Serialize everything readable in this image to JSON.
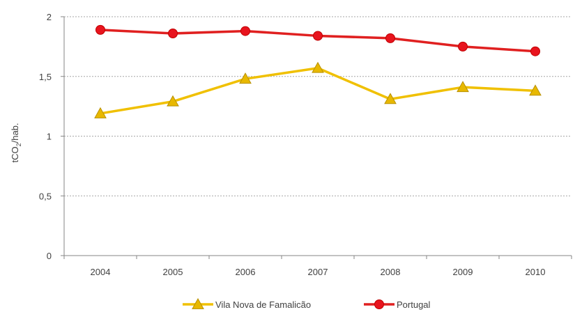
{
  "chart_data": {
    "type": "line",
    "x": [
      "2004",
      "2005",
      "2006",
      "2007",
      "2008",
      "2009",
      "2010"
    ],
    "ylabel": "tCO",
    "ylabel_sub": "2",
    "ylabel_suffix": "/hab.",
    "ylim": [
      0,
      2
    ],
    "yticks": [
      0,
      0.5,
      1,
      1.5,
      2
    ],
    "ytick_labels": [
      "0",
      "0,5",
      "1",
      "1,5",
      "2"
    ],
    "grid": "horizontal-dotted",
    "legend_position": "bottom",
    "series": [
      {
        "name": "Vila Nova de Famalicão",
        "marker": "triangle",
        "color": "#f0c000",
        "marker_fill": "#e8b800",
        "values": [
          1.19,
          1.29,
          1.48,
          1.57,
          1.31,
          1.41,
          1.38
        ]
      },
      {
        "name": "Portugal",
        "marker": "circle",
        "color": "#e02020",
        "marker_fill": "#e8141e",
        "values": [
          1.89,
          1.86,
          1.88,
          1.84,
          1.82,
          1.75,
          1.71
        ]
      }
    ]
  }
}
